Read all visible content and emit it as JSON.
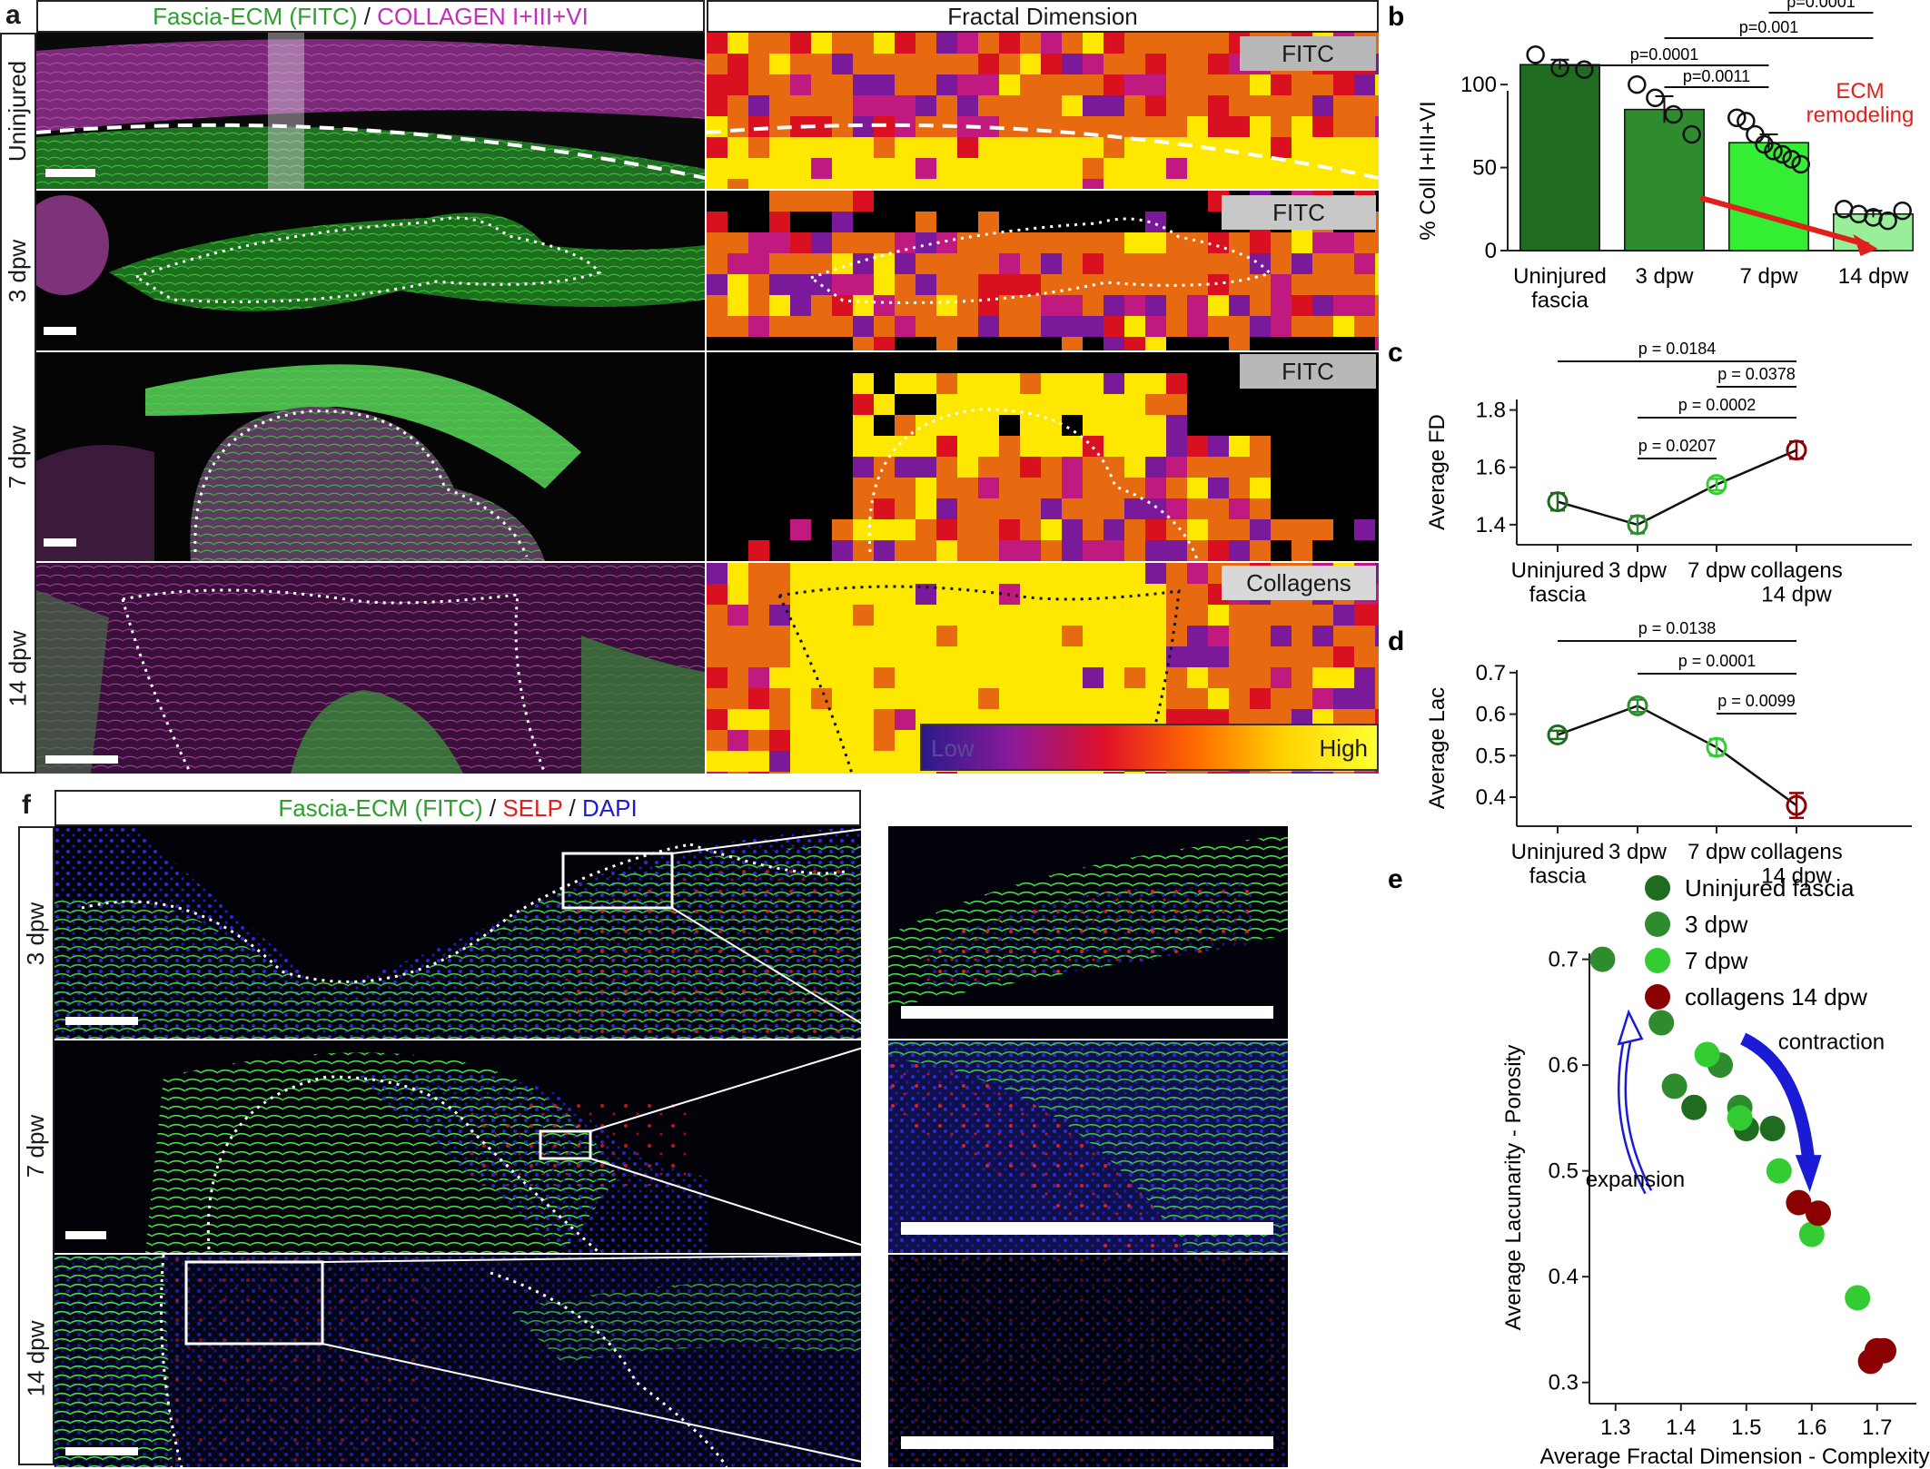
{
  "panel_a": {
    "letter": "a",
    "header_left": {
      "green": "Fascia-ECM (FITC)",
      "sep": " / ",
      "magenta": "COLLAGEN I+III+VI"
    },
    "header_right": "Fractal Dimension",
    "rows": [
      "Uninjured",
      "3 dpw",
      "7 dpw",
      "14 dpw"
    ],
    "fd_tags": [
      "FITC",
      "FITC",
      "FITC",
      "Collagens"
    ],
    "colorbar": {
      "low": "Low",
      "high": "High"
    }
  },
  "panel_f": {
    "letter": "f",
    "header": {
      "green": "Fascia-ECM (FITC)",
      "sep1": " / ",
      "red": "SELP",
      "sep2": " / ",
      "blue": "DAPI"
    },
    "rows": [
      "3 dpw",
      "7 dpw",
      "14 dpw"
    ]
  },
  "colors": {
    "uninjured": "#1f6b1f",
    "d3": "#2e8b2e",
    "d7": "#33cc33",
    "d14": "#8b0000",
    "fitc": "#2e9e2e",
    "collagen": "#c22fb8",
    "selp": "#e0201b",
    "dapi": "#1b1bd6"
  },
  "chart_data": [
    {
      "panel": "b",
      "type": "bar",
      "categories": [
        "Uninjured\nfascia",
        "3 dpw",
        "7 dpw",
        "14 dpw"
      ],
      "values": [
        112,
        85,
        65,
        22
      ],
      "errors": [
        3,
        8,
        5,
        2
      ],
      "points": [
        [
          118,
          110,
          109
        ],
        [
          100,
          92,
          82,
          70
        ],
        [
          80,
          78,
          70,
          64,
          60,
          58,
          55,
          52
        ],
        [
          25,
          22,
          20,
          18,
          24
        ]
      ],
      "ylabel": "% Coll I+III+VI",
      "yticks": [
        0,
        50,
        100
      ],
      "ylim": [
        0,
        140
      ],
      "brackets": [
        {
          "from": 0,
          "to": 2,
          "label": "p=0.0001"
        },
        {
          "from": 1,
          "to": 2,
          "label": "p=0.0011"
        },
        {
          "from": 1,
          "to": 3,
          "label": "p=0.001"
        },
        {
          "from": 2,
          "to": 3,
          "label": "p=0.0001"
        }
      ],
      "annotation": "ECM\nremodeling"
    },
    {
      "panel": "c",
      "type": "line",
      "categories": [
        "Uninjured\nfascia",
        "3 dpw",
        "7 dpw",
        "collagens\n14 dpw"
      ],
      "values": [
        1.48,
        1.4,
        1.54,
        1.66
      ],
      "errors": [
        0.03,
        0.03,
        0.02,
        0.03
      ],
      "ylabel": "Average FD",
      "yticks": [
        1.4,
        1.6,
        1.8
      ],
      "ylim": [
        1.33,
        1.9
      ],
      "brackets": [
        {
          "from": 0,
          "to": 3,
          "label": "p = 0.0184"
        },
        {
          "from": 2,
          "to": 3,
          "label": "p = 0.0378"
        },
        {
          "from": 1,
          "to": 3,
          "label": "p = 0.0002"
        },
        {
          "from": 1,
          "to": 2,
          "label": "p = 0.0207"
        }
      ]
    },
    {
      "panel": "d",
      "type": "line",
      "categories": [
        "Uninjured\nfascia",
        "3 dpw",
        "7 dpw",
        "collagens\n14 dpw"
      ],
      "values": [
        0.55,
        0.62,
        0.52,
        0.38
      ],
      "errors": [
        0.01,
        0.015,
        0.02,
        0.03
      ],
      "ylabel": "Average Lac",
      "yticks": [
        0.4,
        0.5,
        0.6,
        0.7
      ],
      "ylim": [
        0.33,
        0.75
      ],
      "brackets": [
        {
          "from": 0,
          "to": 3,
          "label": "p = 0.0138"
        },
        {
          "from": 1,
          "to": 3,
          "label": "p = 0.0001"
        },
        {
          "from": 2,
          "to": 3,
          "label": "p = 0.0099"
        }
      ]
    },
    {
      "panel": "e",
      "type": "scatter",
      "xlabel": "Average Fractal Dimension - Complexity",
      "ylabel": "Average  Lacunarity - Porosity",
      "xticks": [
        1.3,
        1.4,
        1.5,
        1.6,
        1.7
      ],
      "yticks": [
        0.3,
        0.4,
        0.5,
        0.6,
        0.7
      ],
      "xlim": [
        1.26,
        1.76
      ],
      "ylim": [
        0.28,
        0.74
      ],
      "series": [
        {
          "name": "Uninjured fascia",
          "points": [
            [
              1.42,
              0.56
            ],
            [
              1.5,
              0.54
            ],
            [
              1.54,
              0.54
            ]
          ]
        },
        {
          "name": "3 dpw",
          "points": [
            [
              1.28,
              0.7
            ],
            [
              1.37,
              0.64
            ],
            [
              1.39,
              0.58
            ],
            [
              1.46,
              0.6
            ],
            [
              1.49,
              0.56
            ]
          ]
        },
        {
          "name": "7 dpw",
          "points": [
            [
              1.44,
              0.61
            ],
            [
              1.49,
              0.55
            ],
            [
              1.55,
              0.5
            ],
            [
              1.6,
              0.44
            ],
            [
              1.67,
              0.38
            ]
          ]
        },
        {
          "name": "collagens 14 dpw",
          "points": [
            [
              1.58,
              0.47
            ],
            [
              1.61,
              0.46
            ],
            [
              1.69,
              0.32
            ],
            [
              1.7,
              0.33
            ],
            [
              1.71,
              0.33
            ]
          ]
        }
      ],
      "annotations": [
        "expansion",
        "contraction"
      ]
    }
  ]
}
